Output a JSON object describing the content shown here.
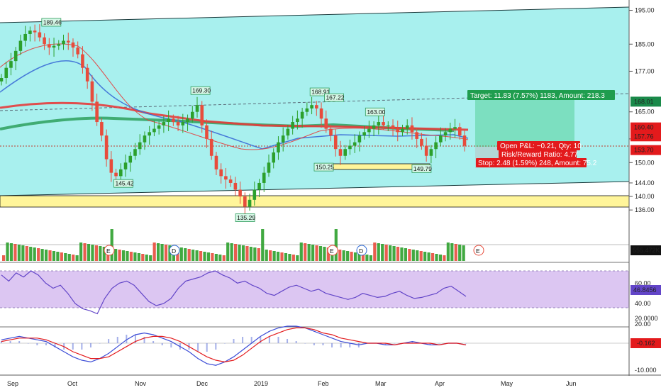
{
  "chart_data": [
    {
      "type": "candlestick",
      "panel": "price",
      "ylim": [
        131,
        197
      ],
      "y_ticks": [
        136.0,
        140.0,
        144.0,
        150.0,
        157.0,
        165.0,
        177.0,
        185.0,
        195.0
      ],
      "price_labels": [
        {
          "value": "168.01",
          "y": 168.01,
          "color": "#1a8a4a"
        },
        {
          "value": "160.40",
          "y": 160.4,
          "color": "#e31a1c"
        },
        {
          "value": "157.76",
          "y": 157.76,
          "color": "#e31a1c"
        },
        {
          "value": "153.70",
          "y": 153.7,
          "color": "#e31a1c"
        }
      ],
      "peak_labels": [
        {
          "text": "189.46",
          "date": "2018-09-20",
          "value": 189.46
        },
        {
          "text": "169.30",
          "date": "2018-11-30",
          "value": 169.3
        },
        {
          "text": "168.91",
          "date": "2019-01-30",
          "value": 168.91
        },
        {
          "text": "167.22",
          "date": "2019-02-06",
          "value": 167.22
        },
        {
          "text": "163.00",
          "date": "2019-02-26",
          "value": 163.0
        },
        {
          "text": "145.42",
          "date": "2018-10-24",
          "value": 145.42
        },
        {
          "text": "135.29",
          "date": "2018-12-24",
          "value": 135.29
        },
        {
          "text": "150.25",
          "date": "2019-02-01",
          "value": 150.25
        },
        {
          "text": "149.79",
          "date": "2019-03-22",
          "value": 149.79
        }
      ],
      "close": [
        175,
        178,
        180,
        183,
        186,
        188,
        189,
        188.5,
        187,
        185,
        184,
        184.5,
        185,
        186,
        185.5,
        184,
        182,
        178,
        174,
        168,
        162,
        158,
        151,
        147,
        146,
        148,
        150,
        152,
        154,
        156,
        158,
        159,
        160,
        161,
        162,
        163,
        162,
        161,
        162,
        163,
        165,
        167,
        161,
        157,
        152,
        148,
        146,
        145,
        144,
        142,
        140,
        137,
        139,
        142,
        144,
        147,
        150,
        153,
        156,
        158,
        160,
        162,
        163,
        165,
        166,
        167,
        166,
        163,
        160,
        158,
        154,
        152,
        154,
        155,
        156,
        158,
        159,
        160,
        161,
        162,
        161,
        161,
        160,
        159,
        160,
        161,
        159,
        157,
        155,
        152,
        154,
        156,
        158,
        159,
        160,
        160.5,
        158,
        155
      ],
      "overlays": {
        "trade_target": "Target: 11.83 (7.57%) 1183, Amount: 218.3",
        "open_pl": "Open P&L: −0.21, Qty: 10",
        "risk_reward": "Risk/Reward Ratio: 4.77",
        "stop": "Stop: 2.48 (1.59%) 248, Amount: 75.2"
      }
    },
    {
      "type": "bar",
      "panel": "volume",
      "label": "555.472K",
      "events": [
        "E",
        "D",
        "E",
        "D",
        "E"
      ]
    },
    {
      "type": "line",
      "panel": "rsi",
      "y_ticks": [
        20.0,
        40.0,
        60.0
      ],
      "current_label": "46.8456"
    },
    {
      "type": "line",
      "panel": "macd",
      "y_ticks": [
        "20.0000",
        "-10.000"
      ],
      "current_label": "-0.162"
    }
  ],
  "x_axis": {
    "labels": [
      {
        "text": "Sep",
        "date": "2018-09-01"
      },
      {
        "text": "Oct",
        "date": "2018-10-01"
      },
      {
        "text": "Nov",
        "date": "2018-11-01"
      },
      {
        "text": "Dec",
        "date": "2018-12-01"
      },
      {
        "text": "2019",
        "date": "2019-01-01"
      },
      {
        "text": "Feb",
        "date": "2019-02-01"
      },
      {
        "text": "Mar",
        "date": "2019-03-01"
      },
      {
        "text": "Apr",
        "date": "2019-04-01"
      },
      {
        "text": "May",
        "date": "2019-05-01"
      },
      {
        "text": "Jun",
        "date": "2019-06-01"
      }
    ]
  },
  "colors": {
    "channel_fill": "#a8f0ee",
    "support_band": "#fff59a",
    "up_candle": "#2ca02c",
    "down_candle": "#e74c3c",
    "rsi_band": "#dcc6f2",
    "target_box": "#1f9d4e",
    "stop_box": "#e31a1c"
  }
}
